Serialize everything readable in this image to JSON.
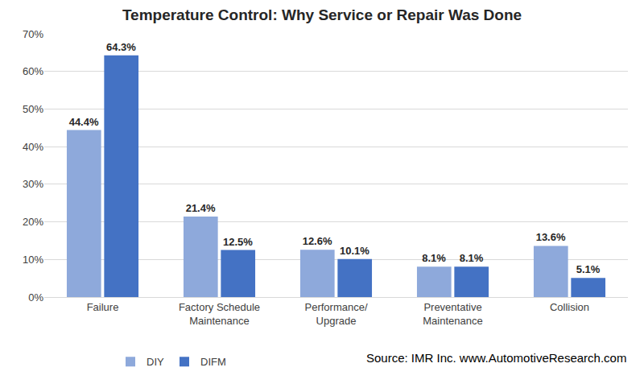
{
  "chart_data": {
    "type": "bar",
    "title": "Temperature Control: Why Service or Repair Was Done",
    "categories": [
      "Failure",
      "Factory Schedule Maintenance",
      "Performance/ Upgrade",
      "Preventative Maintenance",
      "Collision"
    ],
    "series": [
      {
        "name": "DIY",
        "color": "#8EA9DB",
        "values": [
          44.4,
          21.4,
          12.6,
          8.1,
          13.6
        ],
        "value_labels": [
          "44.4%",
          "21.4%",
          "12.6%",
          "8.1%",
          "13.6%"
        ]
      },
      {
        "name": "DIFM",
        "color": "#4472C4",
        "values": [
          64.3,
          12.5,
          10.1,
          8.1,
          5.1
        ],
        "value_labels": [
          "64.3%",
          "12.5%",
          "10.1%",
          "8.1%",
          "5.1%"
        ]
      }
    ],
    "ylim": [
      0,
      70
    ],
    "yticks": [
      {
        "value": 0,
        "label": "0%"
      },
      {
        "value": 10,
        "label": "10%"
      },
      {
        "value": 20,
        "label": "20%"
      },
      {
        "value": 30,
        "label": "30%"
      },
      {
        "value": 40,
        "label": "40%"
      },
      {
        "value": 50,
        "label": "50%"
      },
      {
        "value": 60,
        "label": "60%"
      },
      {
        "value": 70,
        "label": "70%"
      }
    ],
    "grid": true,
    "data_labels": true,
    "legend": "bottom left",
    "annotations": [
      "Source: IMR Inc. www.AutomotiveResearch.com"
    ]
  }
}
